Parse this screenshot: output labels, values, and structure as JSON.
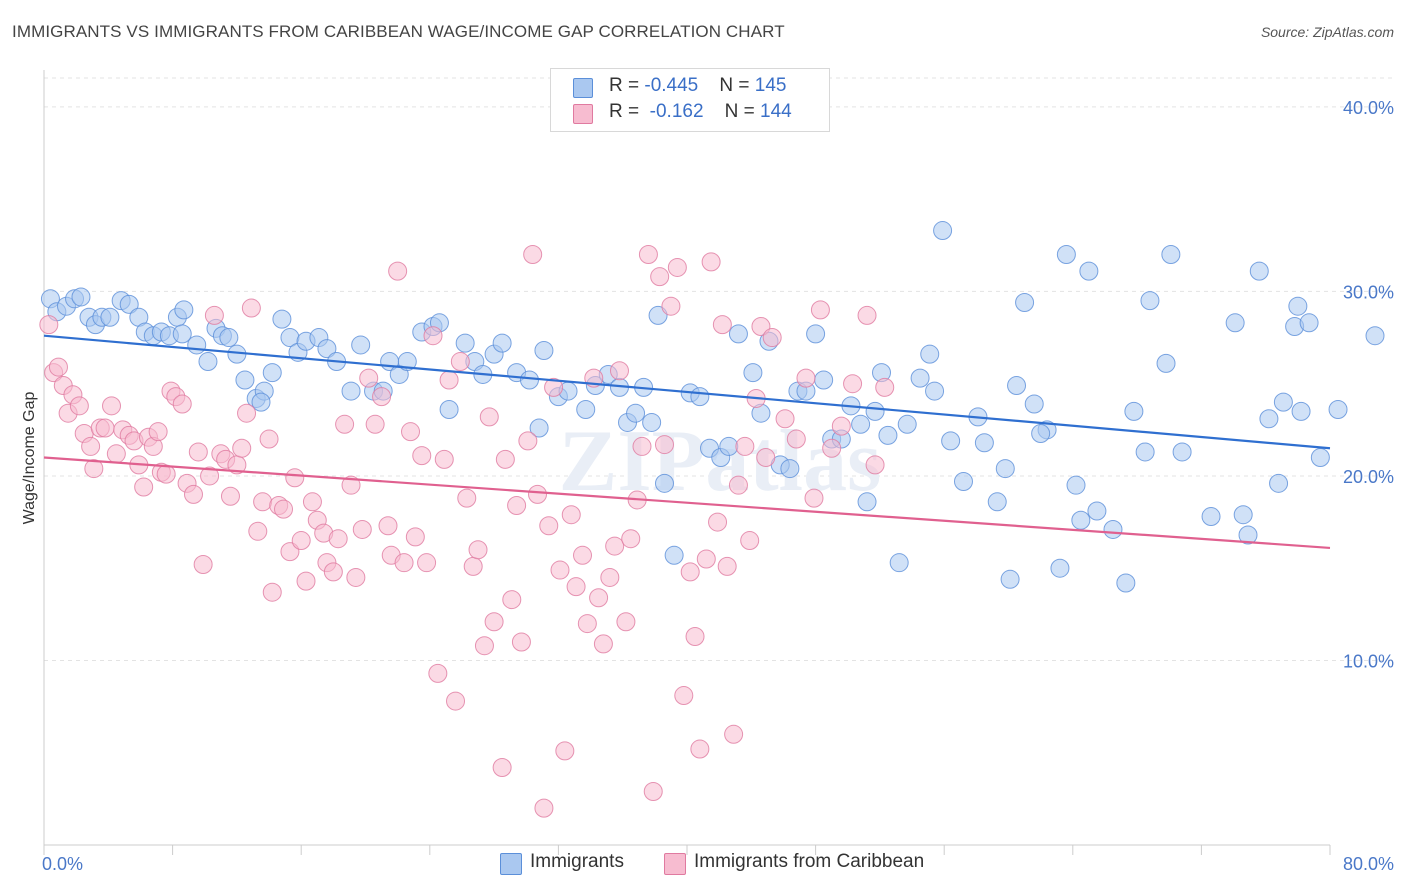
{
  "title": "IMMIGRANTS VS IMMIGRANTS FROM CARIBBEAN WAGE/INCOME GAP CORRELATION CHART",
  "source": "Source: ZipAtlas.com",
  "watermark": "ZIPatlas",
  "stats": [
    {
      "r_label": "R = ",
      "r_value": "-0.445",
      "n_label": "N = ",
      "n_value": "145"
    },
    {
      "r_label": "R = ",
      "r_value": "-0.162",
      "n_label": "N = ",
      "n_value": "144"
    }
  ],
  "chart_data": {
    "type": "scatter",
    "title": "IMMIGRANTS VS IMMIGRANTS FROM CARIBBEAN WAGE/INCOME GAP CORRELATION CHART",
    "xlabel": "",
    "ylabel": "Wage/Income Gap",
    "xlim": [
      0,
      80
    ],
    "ylim": [
      0,
      42
    ],
    "x_tick_labels": [
      "0.0%",
      "80.0%"
    ],
    "y_ticks": [
      10,
      20,
      30,
      40
    ],
    "y_tick_labels": [
      "10.0%",
      "20.0%",
      "30.0%",
      "40.0%"
    ],
    "grid": true,
    "legend_position": "bottom",
    "series": [
      {
        "name": "Immigrants",
        "color": "#5b8fd9",
        "fill": "#aac8f0",
        "trend": {
          "x": [
            0,
            80
          ],
          "y": [
            27.6,
            21.5
          ]
        },
        "points": [
          [
            0.4,
            29.6
          ],
          [
            0.8,
            28.9
          ],
          [
            1.4,
            29.2
          ],
          [
            1.9,
            29.6
          ],
          [
            2.3,
            29.7
          ],
          [
            2.8,
            28.6
          ],
          [
            3.2,
            28.2
          ],
          [
            3.6,
            28.6
          ],
          [
            4.1,
            28.6
          ],
          [
            4.8,
            29.5
          ],
          [
            5.3,
            29.3
          ],
          [
            5.9,
            28.6
          ],
          [
            6.3,
            27.8
          ],
          [
            6.8,
            27.6
          ],
          [
            7.3,
            27.8
          ],
          [
            7.8,
            27.6
          ],
          [
            8.3,
            28.6
          ],
          [
            8.7,
            29.0
          ],
          [
            9.5,
            27.1
          ],
          [
            10.2,
            26.2
          ],
          [
            10.7,
            28.0
          ],
          [
            11.1,
            27.6
          ],
          [
            11.5,
            27.5
          ],
          [
            12.0,
            26.6
          ],
          [
            12.5,
            25.2
          ],
          [
            13.2,
            24.2
          ],
          [
            13.7,
            24.6
          ],
          [
            14.2,
            25.6
          ],
          [
            14.8,
            28.5
          ],
          [
            15.3,
            27.5
          ],
          [
            15.8,
            26.7
          ],
          [
            16.3,
            27.3
          ],
          [
            17.1,
            27.5
          ],
          [
            17.6,
            26.9
          ],
          [
            18.2,
            26.2
          ],
          [
            19.1,
            24.6
          ],
          [
            19.7,
            27.1
          ],
          [
            20.5,
            24.6
          ],
          [
            21.1,
            24.6
          ],
          [
            21.5,
            26.2
          ],
          [
            22.1,
            25.5
          ],
          [
            22.6,
            26.2
          ],
          [
            23.5,
            27.8
          ],
          [
            24.2,
            28.1
          ],
          [
            24.6,
            28.3
          ],
          [
            25.2,
            23.6
          ],
          [
            26.2,
            27.2
          ],
          [
            26.8,
            26.2
          ],
          [
            27.3,
            25.5
          ],
          [
            28.0,
            26.6
          ],
          [
            28.5,
            27.2
          ],
          [
            29.4,
            25.6
          ],
          [
            30.2,
            25.2
          ],
          [
            30.8,
            22.6
          ],
          [
            31.1,
            26.8
          ],
          [
            32.0,
            24.3
          ],
          [
            32.6,
            24.6
          ],
          [
            33.7,
            23.6
          ],
          [
            34.3,
            24.9
          ],
          [
            35.1,
            25.5
          ],
          [
            35.8,
            24.8
          ],
          [
            36.3,
            22.9
          ],
          [
            37.3,
            24.8
          ],
          [
            37.8,
            22.9
          ],
          [
            38.2,
            28.7
          ],
          [
            38.6,
            19.6
          ],
          [
            39.2,
            15.7
          ],
          [
            40.2,
            24.5
          ],
          [
            40.8,
            24.3
          ],
          [
            41.4,
            21.5
          ],
          [
            42.1,
            21.0
          ],
          [
            42.6,
            21.6
          ],
          [
            43.2,
            27.7
          ],
          [
            44.1,
            25.6
          ],
          [
            44.6,
            23.4
          ],
          [
            45.1,
            27.3
          ],
          [
            45.8,
            20.6
          ],
          [
            46.4,
            20.4
          ],
          [
            46.9,
            24.6
          ],
          [
            47.4,
            24.6
          ],
          [
            48.0,
            27.7
          ],
          [
            48.5,
            25.2
          ],
          [
            49.0,
            22.0
          ],
          [
            49.6,
            22.0
          ],
          [
            50.2,
            23.8
          ],
          [
            50.8,
            22.8
          ],
          [
            51.2,
            18.6
          ],
          [
            51.7,
            23.5
          ],
          [
            52.1,
            25.6
          ],
          [
            52.5,
            22.2
          ],
          [
            53.2,
            15.3
          ],
          [
            53.7,
            22.8
          ],
          [
            54.5,
            25.3
          ],
          [
            55.1,
            26.6
          ],
          [
            55.4,
            24.6
          ],
          [
            55.9,
            33.3
          ],
          [
            56.4,
            21.9
          ],
          [
            57.2,
            19.7
          ],
          [
            58.1,
            23.2
          ],
          [
            58.5,
            21.8
          ],
          [
            59.3,
            18.6
          ],
          [
            59.8,
            20.4
          ],
          [
            60.1,
            14.4
          ],
          [
            60.5,
            24.9
          ],
          [
            61.0,
            29.4
          ],
          [
            61.6,
            23.9
          ],
          [
            62.4,
            22.5
          ],
          [
            63.2,
            15.0
          ],
          [
            63.6,
            32.0
          ],
          [
            64.2,
            19.5
          ],
          [
            64.5,
            17.6
          ],
          [
            65.0,
            31.1
          ],
          [
            65.5,
            18.1
          ],
          [
            66.5,
            17.1
          ],
          [
            67.3,
            14.2
          ],
          [
            67.8,
            23.5
          ],
          [
            68.5,
            21.3
          ],
          [
            68.8,
            29.5
          ],
          [
            69.8,
            26.1
          ],
          [
            70.1,
            32.0
          ],
          [
            70.8,
            21.3
          ],
          [
            72.6,
            17.8
          ],
          [
            74.1,
            28.3
          ],
          [
            74.6,
            17.9
          ],
          [
            74.9,
            16.8
          ],
          [
            75.6,
            31.1
          ],
          [
            76.2,
            23.1
          ],
          [
            76.8,
            19.6
          ],
          [
            77.1,
            24.0
          ],
          [
            78.0,
            29.2
          ],
          [
            77.8,
            28.1
          ],
          [
            78.2,
            23.5
          ],
          [
            78.7,
            28.3
          ],
          [
            79.4,
            21.0
          ],
          [
            80.5,
            23.6
          ],
          [
            82.8,
            27.6
          ],
          [
            62.0,
            22.3
          ],
          [
            36.8,
            23.4
          ],
          [
            13.5,
            24.0
          ],
          [
            8.6,
            27.7
          ]
        ]
      },
      {
        "name": "Immigrants from Caribbean",
        "color": "#e07aa0",
        "fill": "#f7bcd0",
        "trend": {
          "x": [
            0,
            80
          ],
          "y": [
            21.0,
            16.1
          ]
        },
        "points": [
          [
            0.3,
            28.2
          ],
          [
            0.6,
            25.6
          ],
          [
            0.9,
            25.9
          ],
          [
            1.2,
            24.9
          ],
          [
            1.5,
            23.4
          ],
          [
            1.8,
            24.4
          ],
          [
            2.2,
            23.8
          ],
          [
            2.5,
            22.3
          ],
          [
            2.9,
            21.6
          ],
          [
            3.1,
            20.4
          ],
          [
            3.5,
            22.6
          ],
          [
            3.8,
            22.6
          ],
          [
            4.2,
            23.8
          ],
          [
            4.5,
            21.2
          ],
          [
            4.9,
            22.5
          ],
          [
            5.3,
            22.2
          ],
          [
            5.6,
            21.9
          ],
          [
            5.9,
            20.6
          ],
          [
            6.2,
            19.4
          ],
          [
            6.5,
            22.1
          ],
          [
            6.8,
            21.6
          ],
          [
            7.1,
            22.4
          ],
          [
            7.3,
            20.2
          ],
          [
            7.6,
            20.1
          ],
          [
            7.9,
            24.6
          ],
          [
            8.2,
            24.3
          ],
          [
            8.6,
            23.9
          ],
          [
            8.9,
            19.6
          ],
          [
            9.3,
            19.0
          ],
          [
            9.6,
            21.3
          ],
          [
            9.9,
            15.2
          ],
          [
            10.3,
            20.0
          ],
          [
            10.6,
            28.7
          ],
          [
            11.0,
            21.2
          ],
          [
            11.3,
            20.9
          ],
          [
            11.6,
            18.9
          ],
          [
            12.0,
            20.6
          ],
          [
            12.3,
            21.5
          ],
          [
            12.6,
            23.4
          ],
          [
            12.9,
            29.1
          ],
          [
            13.3,
            17.0
          ],
          [
            13.6,
            18.6
          ],
          [
            14.0,
            22.0
          ],
          [
            14.2,
            13.7
          ],
          [
            14.6,
            18.4
          ],
          [
            14.9,
            18.2
          ],
          [
            15.3,
            15.9
          ],
          [
            15.6,
            19.9
          ],
          [
            16.0,
            16.5
          ],
          [
            16.3,
            14.3
          ],
          [
            16.7,
            18.6
          ],
          [
            17.0,
            17.6
          ],
          [
            17.4,
            16.9
          ],
          [
            17.6,
            15.3
          ],
          [
            18.0,
            14.8
          ],
          [
            18.3,
            16.6
          ],
          [
            18.7,
            22.8
          ],
          [
            19.1,
            19.5
          ],
          [
            19.4,
            14.5
          ],
          [
            19.8,
            17.1
          ],
          [
            20.2,
            25.3
          ],
          [
            20.6,
            22.8
          ],
          [
            21.0,
            24.3
          ],
          [
            21.4,
            17.3
          ],
          [
            21.6,
            15.7
          ],
          [
            22.0,
            31.1
          ],
          [
            22.4,
            15.3
          ],
          [
            22.8,
            22.4
          ],
          [
            23.1,
            16.7
          ],
          [
            23.5,
            21.1
          ],
          [
            23.8,
            15.3
          ],
          [
            24.2,
            27.6
          ],
          [
            24.5,
            9.3
          ],
          [
            24.9,
            20.9
          ],
          [
            25.2,
            25.2
          ],
          [
            25.6,
            7.8
          ],
          [
            25.9,
            26.2
          ],
          [
            26.3,
            18.8
          ],
          [
            26.7,
            15.1
          ],
          [
            27.0,
            16.0
          ],
          [
            27.4,
            10.8
          ],
          [
            27.7,
            23.2
          ],
          [
            28.0,
            12.1
          ],
          [
            28.5,
            4.2
          ],
          [
            28.7,
            20.9
          ],
          [
            29.1,
            13.3
          ],
          [
            29.4,
            18.4
          ],
          [
            29.7,
            11.0
          ],
          [
            30.1,
            21.9
          ],
          [
            30.4,
            32.0
          ],
          [
            30.7,
            19.0
          ],
          [
            31.1,
            2.0
          ],
          [
            31.4,
            17.3
          ],
          [
            31.7,
            24.8
          ],
          [
            32.1,
            14.9
          ],
          [
            32.4,
            5.1
          ],
          [
            32.8,
            17.9
          ],
          [
            33.1,
            14.0
          ],
          [
            33.5,
            15.7
          ],
          [
            33.8,
            12.0
          ],
          [
            34.2,
            25.3
          ],
          [
            34.5,
            13.4
          ],
          [
            34.8,
            10.9
          ],
          [
            35.2,
            14.5
          ],
          [
            35.5,
            16.2
          ],
          [
            35.8,
            25.7
          ],
          [
            36.2,
            12.1
          ],
          [
            36.5,
            16.6
          ],
          [
            36.9,
            18.7
          ],
          [
            37.2,
            21.6
          ],
          [
            37.6,
            32.0
          ],
          [
            37.9,
            2.9
          ],
          [
            38.3,
            30.8
          ],
          [
            38.6,
            21.7
          ],
          [
            39.0,
            29.2
          ],
          [
            39.4,
            31.3
          ],
          [
            39.8,
            8.1
          ],
          [
            40.2,
            14.8
          ],
          [
            40.5,
            11.3
          ],
          [
            40.8,
            5.2
          ],
          [
            41.2,
            15.5
          ],
          [
            41.5,
            31.6
          ],
          [
            41.9,
            17.5
          ],
          [
            42.2,
            28.2
          ],
          [
            42.5,
            15.1
          ],
          [
            42.9,
            6.0
          ],
          [
            43.2,
            19.5
          ],
          [
            43.6,
            21.6
          ],
          [
            43.9,
            16.5
          ],
          [
            44.3,
            24.2
          ],
          [
            44.6,
            28.1
          ],
          [
            44.9,
            21.0
          ],
          [
            45.3,
            27.5
          ],
          [
            46.1,
            23.1
          ],
          [
            46.8,
            22.0
          ],
          [
            47.4,
            25.3
          ],
          [
            47.9,
            18.8
          ],
          [
            48.3,
            29.0
          ],
          [
            49.0,
            21.5
          ],
          [
            49.6,
            22.7
          ],
          [
            50.3,
            25.0
          ],
          [
            51.2,
            28.7
          ],
          [
            51.7,
            20.6
          ],
          [
            52.3,
            24.8
          ]
        ]
      }
    ]
  },
  "legend": {
    "items": [
      "Immigrants",
      "Immigrants from Caribbean"
    ]
  }
}
